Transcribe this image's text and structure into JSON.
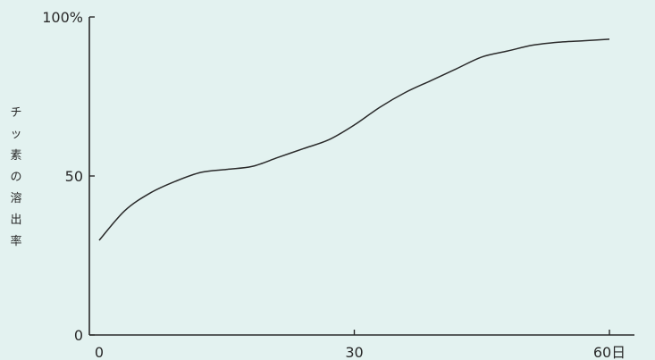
{
  "chart_data": {
    "type": "line",
    "title": "",
    "xlabel": "",
    "ylabel": "チッ素の溶出率",
    "xlim": [
      0,
      60
    ],
    "ylim": [
      0,
      100
    ],
    "x_ticks": [
      {
        "value": 0,
        "label": "0"
      },
      {
        "value": 30,
        "label": "30"
      },
      {
        "value": 60,
        "label": "60日"
      }
    ],
    "y_ticks": [
      {
        "value": 0,
        "label": "0"
      },
      {
        "value": 50,
        "label": "50"
      },
      {
        "value": 100,
        "label": "100%"
      }
    ],
    "grid": false,
    "legend": "none",
    "series": [
      {
        "color": "#2a2a2a",
        "x": [
          0,
          3,
          6,
          9,
          12,
          15,
          18,
          21,
          24,
          27,
          30,
          33,
          36,
          39,
          42,
          45,
          48,
          51,
          54,
          57,
          60
        ],
        "y": [
          32,
          42,
          48,
          52,
          55,
          56,
          57,
          60,
          63,
          66,
          71,
          77,
          82,
          86,
          90,
          94,
          96,
          98,
          99,
          99.5,
          100
        ]
      }
    ]
  }
}
